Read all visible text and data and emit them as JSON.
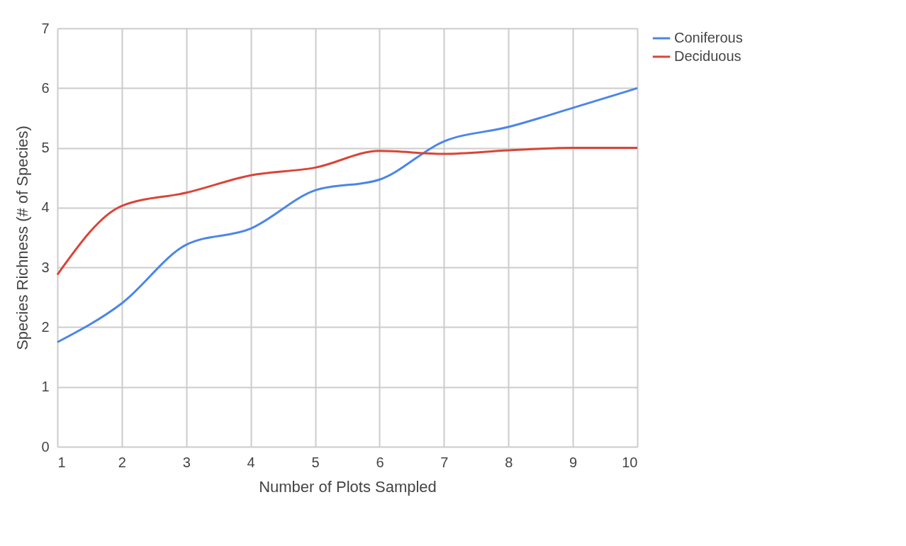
{
  "chart_data": {
    "type": "line",
    "xlabel": "Number  of Plots Sampled",
    "ylabel": "Species Richness (# of Species)",
    "x": [
      1,
      2,
      3,
      4,
      5,
      6,
      7,
      8,
      9,
      10
    ],
    "series": [
      {
        "name": "Coniferous",
        "color": "#4a86e8",
        "values": [
          1.75,
          2.4,
          3.38,
          3.65,
          4.29,
          4.47,
          5.11,
          5.35,
          5.67,
          6.0
        ]
      },
      {
        "name": "Deciduous",
        "color": "#db4437",
        "values": [
          2.88,
          4.03,
          4.25,
          4.54,
          4.67,
          4.95,
          4.9,
          4.96,
          5.0,
          5.0
        ]
      }
    ],
    "xlim": [
      1,
      10
    ],
    "xticks": [
      1,
      2,
      3,
      4,
      5,
      6,
      7,
      8,
      9,
      10
    ],
    "ylim": [
      0,
      7
    ],
    "yticks": [
      0,
      1,
      2,
      3,
      4,
      5,
      6,
      7
    ],
    "grid": true,
    "legend": "right",
    "marker": "none",
    "line_style": "solid"
  }
}
